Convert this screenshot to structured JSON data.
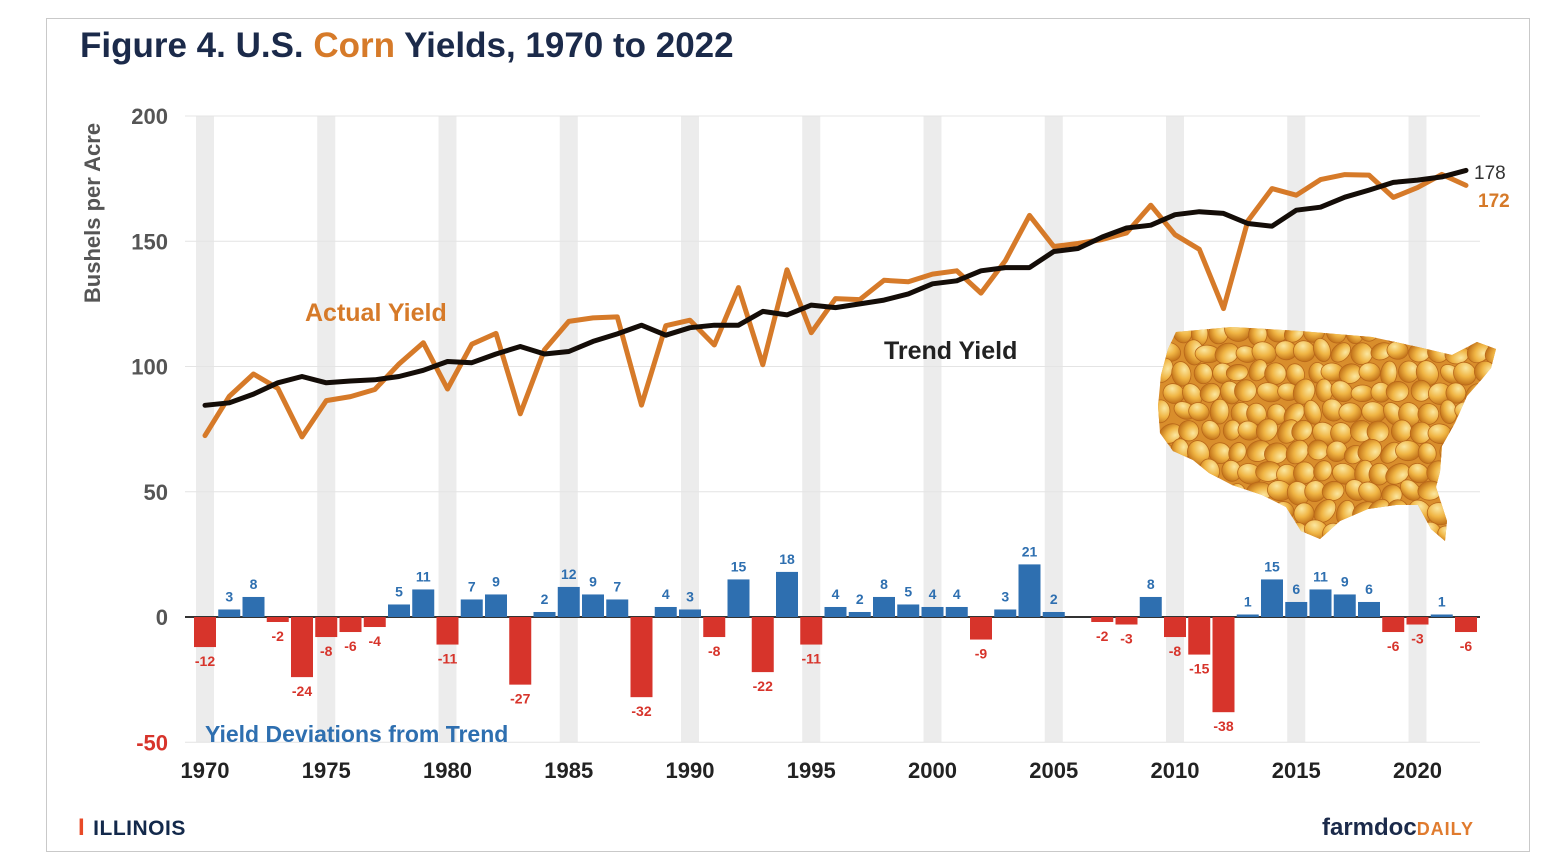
{
  "title": {
    "prefix": "Figure 4. U.S. ",
    "highlight": "Corn",
    "suffix": " Yields, 1970 to 2022"
  },
  "colors": {
    "actual": "#d67a29",
    "trend": "#140d08",
    "positive": "#2e6fb0",
    "negative": "#d7342b",
    "title": "#1b2a4a",
    "band": "#ececec",
    "grid": "#e4e4e4",
    "axis": "#333333"
  },
  "chart_data": {
    "type": "line+bar",
    "title": "Figure 4. U.S. Corn Yields, 1970 to 2022",
    "ylabel": "Bushels per Acre",
    "xlabel": "",
    "ylim": [
      -50,
      200
    ],
    "yticks": [
      -50,
      0,
      50,
      100,
      150,
      200
    ],
    "xticks": [
      1970,
      1975,
      1980,
      1985,
      1990,
      1995,
      2000,
      2005,
      2010,
      2015,
      2020
    ],
    "years": [
      1970,
      1971,
      1972,
      1973,
      1974,
      1975,
      1976,
      1977,
      1978,
      1979,
      1980,
      1981,
      1982,
      1983,
      1984,
      1985,
      1986,
      1987,
      1988,
      1989,
      1990,
      1991,
      1992,
      1993,
      1994,
      1995,
      1996,
      1997,
      1998,
      1999,
      2000,
      2001,
      2002,
      2003,
      2004,
      2005,
      2006,
      2007,
      2008,
      2009,
      2010,
      2011,
      2012,
      2013,
      2014,
      2015,
      2016,
      2017,
      2018,
      2019,
      2020,
      2021,
      2022
    ],
    "series": [
      {
        "name": "Actual Yield",
        "kind": "line",
        "values": [
          72.4,
          88.1,
          97.0,
          91.3,
          71.9,
          86.4,
          88.0,
          90.8,
          101.0,
          109.5,
          91.0,
          108.9,
          113.2,
          81.1,
          106.7,
          118.0,
          119.4,
          119.8,
          84.6,
          116.3,
          118.5,
          108.6,
          131.5,
          100.7,
          138.6,
          113.5,
          127.1,
          126.7,
          134.4,
          133.8,
          136.9,
          138.2,
          129.3,
          142.2,
          160.3,
          147.9,
          149.1,
          150.7,
          153.3,
          164.4,
          152.6,
          146.8,
          123.1,
          158.1,
          171.0,
          168.4,
          174.6,
          176.6,
          176.4,
          167.5,
          171.4,
          176.7,
          172.3
        ]
      },
      {
        "name": "Trend Yield",
        "kind": "line",
        "values": [
          84.5,
          85.5,
          89.0,
          93.5,
          96.0,
          93.5,
          94.2,
          94.7,
          96.0,
          98.5,
          102.0,
          101.5,
          105.0,
          108.0,
          105.0,
          106.0,
          110.0,
          113.0,
          116.5,
          112.5,
          115.5,
          116.5,
          116.5,
          122.0,
          120.6,
          124.5,
          123.5,
          125.0,
          126.5,
          129.0,
          133.0,
          134.2,
          138.2,
          139.5,
          139.5,
          145.9,
          147.1,
          151.7,
          155.3,
          156.4,
          160.6,
          161.8,
          161.1,
          157.1,
          156.0,
          162.4,
          163.6,
          167.6,
          170.4,
          173.5,
          174.4,
          175.7,
          178.3
        ]
      },
      {
        "name": "Yield Deviations from Trend",
        "kind": "bar",
        "values": [
          -12,
          3,
          8,
          -2,
          -24,
          -8,
          -6,
          -4,
          5,
          11,
          -11,
          7,
          9,
          -27,
          2,
          12,
          9,
          7,
          -32,
          4,
          3,
          -8,
          15,
          -22,
          18,
          -11,
          4,
          2,
          8,
          5,
          4,
          4,
          -9,
          3,
          21,
          2,
          null,
          -2,
          -3,
          8,
          -8,
          -15,
          -38,
          1,
          15,
          6,
          11,
          9,
          6,
          -6,
          -3,
          1,
          -6
        ]
      }
    ],
    "end_labels": {
      "trend": "178",
      "actual": "172"
    },
    "annotations": {
      "actual": "Actual Yield",
      "trend": "Trend Yield",
      "deviations": "Yield Deviations from Trend"
    }
  },
  "footer": {
    "illinois_mark": "I",
    "illinois": "ILLINOIS",
    "farmdoc": "farmdoc",
    "daily": "DAILY"
  }
}
